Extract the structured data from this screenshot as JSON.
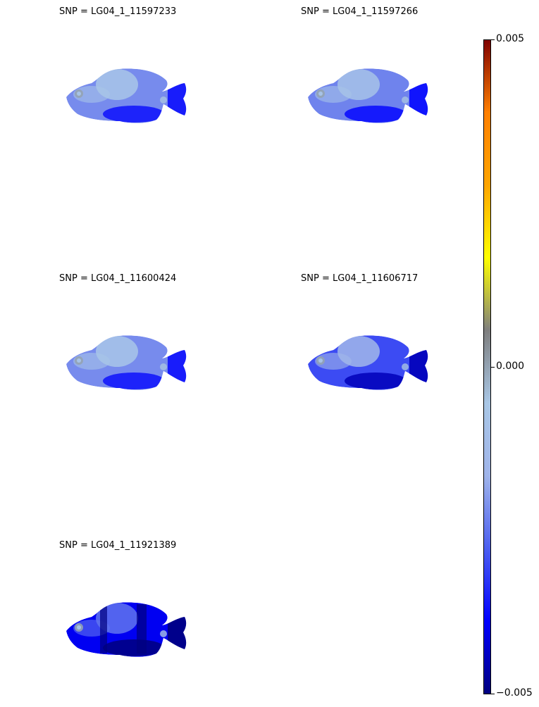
{
  "chart_data": {
    "type": "heatmap",
    "colormap": {
      "name": "blue-gray-red",
      "stops": [
        "#00007f",
        "#0000ff",
        "#4b5ef0",
        "#9fb4ea",
        "#a9c7e6",
        "#7f7f7f",
        "#ffff00",
        "#ffa500",
        "#ff7f00",
        "#7f0000"
      ],
      "min": -0.005,
      "max": 0.005,
      "ticks": [
        -0.005,
        0.0,
        0.005
      ],
      "tick_labels": [
        "−0.005",
        "0.000",
        "0.005"
      ]
    },
    "panels": [
      {
        "title": "SNP = LG04_1_11597233",
        "mean_value": -0.0022
      },
      {
        "title": "SNP = LG04_1_11597266",
        "mean_value": -0.0023
      },
      {
        "title": "SNP = LG04_1_11600424",
        "mean_value": -0.0022
      },
      {
        "title": "SNP = LG04_1_11606717",
        "mean_value": -0.003
      },
      {
        "title": "SNP = LG04_1_11921389",
        "mean_value": -0.004
      }
    ]
  }
}
